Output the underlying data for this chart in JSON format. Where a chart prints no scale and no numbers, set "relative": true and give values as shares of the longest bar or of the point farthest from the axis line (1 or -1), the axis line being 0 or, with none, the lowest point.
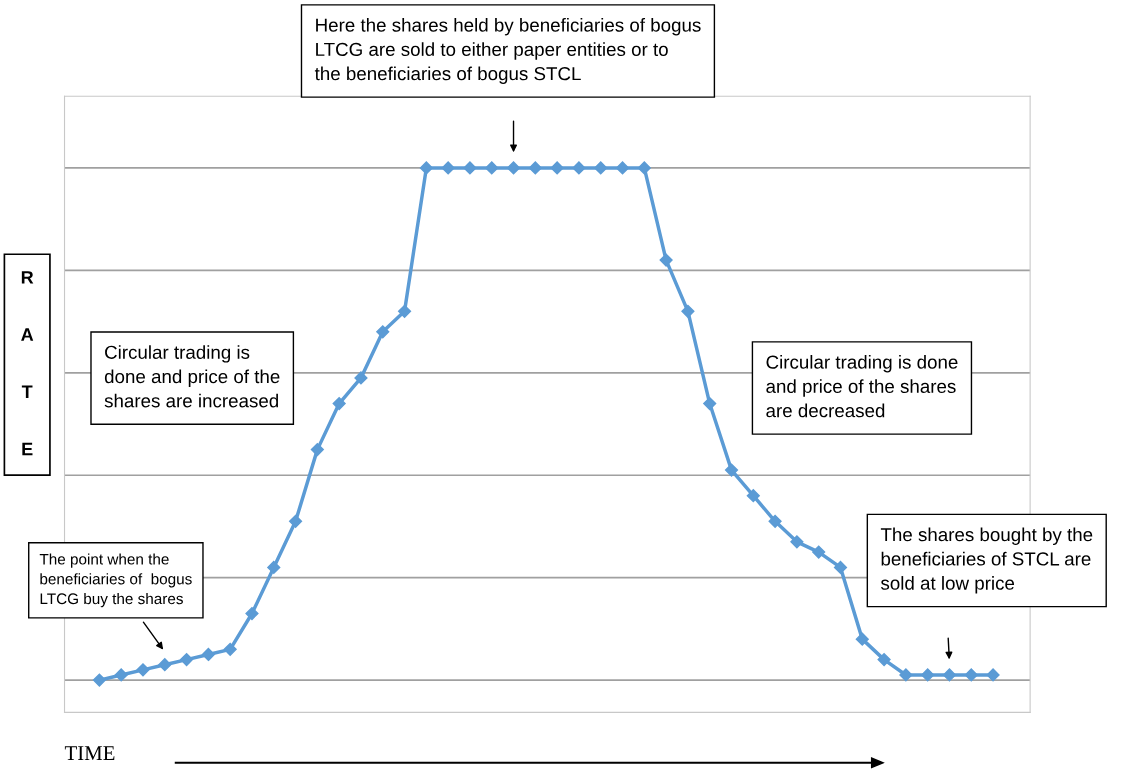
{
  "chart_data": {
    "type": "line",
    "relative": true,
    "xlabel": "TIME",
    "ylabel": "RATE",
    "categories": [
      null,
      null,
      null,
      null,
      null,
      null,
      null,
      null,
      null,
      null,
      null,
      null,
      null,
      null,
      null,
      null,
      null,
      null,
      null,
      null,
      null,
      null,
      null,
      null,
      null,
      null,
      null,
      null,
      null,
      null,
      null,
      null,
      null,
      null,
      null,
      null,
      null,
      null,
      null,
      null,
      null,
      null
    ],
    "series": [
      {
        "color": "#5b9bd5",
        "values": [
          0,
          0.01,
          0.02,
          0.03,
          0.04,
          0.05,
          0.06,
          0.13,
          0.22,
          0.31,
          0.45,
          0.54,
          0.59,
          0.68,
          0.72,
          1,
          1,
          1,
          1,
          1,
          1,
          1,
          1,
          1,
          1,
          1,
          0.82,
          0.72,
          0.54,
          0.41,
          0.36,
          0.31,
          0.27,
          0.25,
          0.22,
          0.08,
          0.04,
          0.01,
          0.01,
          0.01,
          0.01,
          0.01
        ]
      }
    ],
    "annotations": [
      "Here the shares held by beneficiaries of bogus\nLTCG are sold to either paper entities or to\nthe beneficiaries of bogus STCL",
      "Circular trading is\ndone and price of the\nshares are increased",
      "Circular trading is done\nand price of the shares\nare decreased",
      "The point when the\nbeneficiaries of  bogus\nLTCG buy the shares",
      "The shares bought by the\nbeneficiaries of STCL are\nsold at low price"
    ],
    "marker": "diamond",
    "line_style": "solid",
    "grid": "y",
    "tick_labels": false
  }
}
